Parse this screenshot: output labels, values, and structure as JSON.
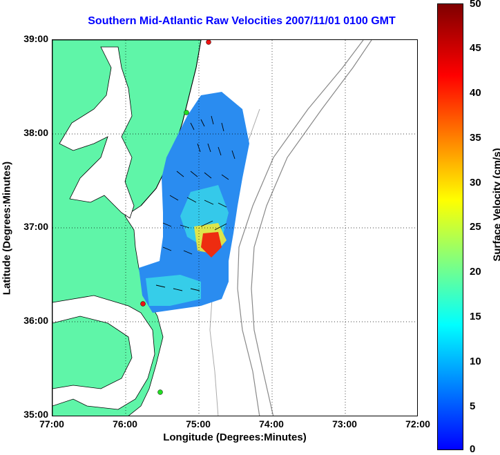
{
  "title": "Southern Mid-Atlantic Raw Velocities 2007/11/01 0100 GMT",
  "xlabel": "Longitude (Degrees:Minutes)",
  "ylabel": "Latitude (Degrees:Minutes)",
  "x_ticks": [
    "77:00",
    "76:00",
    "75:00",
    "74:00",
    "73:00",
    "72:00"
  ],
  "y_ticks": [
    "39:00",
    "38:00",
    "37:00",
    "36:00",
    "35:00"
  ],
  "colorbar": {
    "label": "Surface Velocity (cm/s)",
    "ticks": [
      "50",
      "45",
      "40",
      "35",
      "30",
      "25",
      "20",
      "15",
      "10",
      "5",
      "0"
    ]
  },
  "colors": {
    "land": "#5ff5a8",
    "title": "#0000ff",
    "bathymetry": "#888888"
  },
  "stations": [
    {
      "color": "red"
    },
    {
      "color": "green"
    },
    {
      "color": "red"
    },
    {
      "color": "green"
    }
  ]
}
